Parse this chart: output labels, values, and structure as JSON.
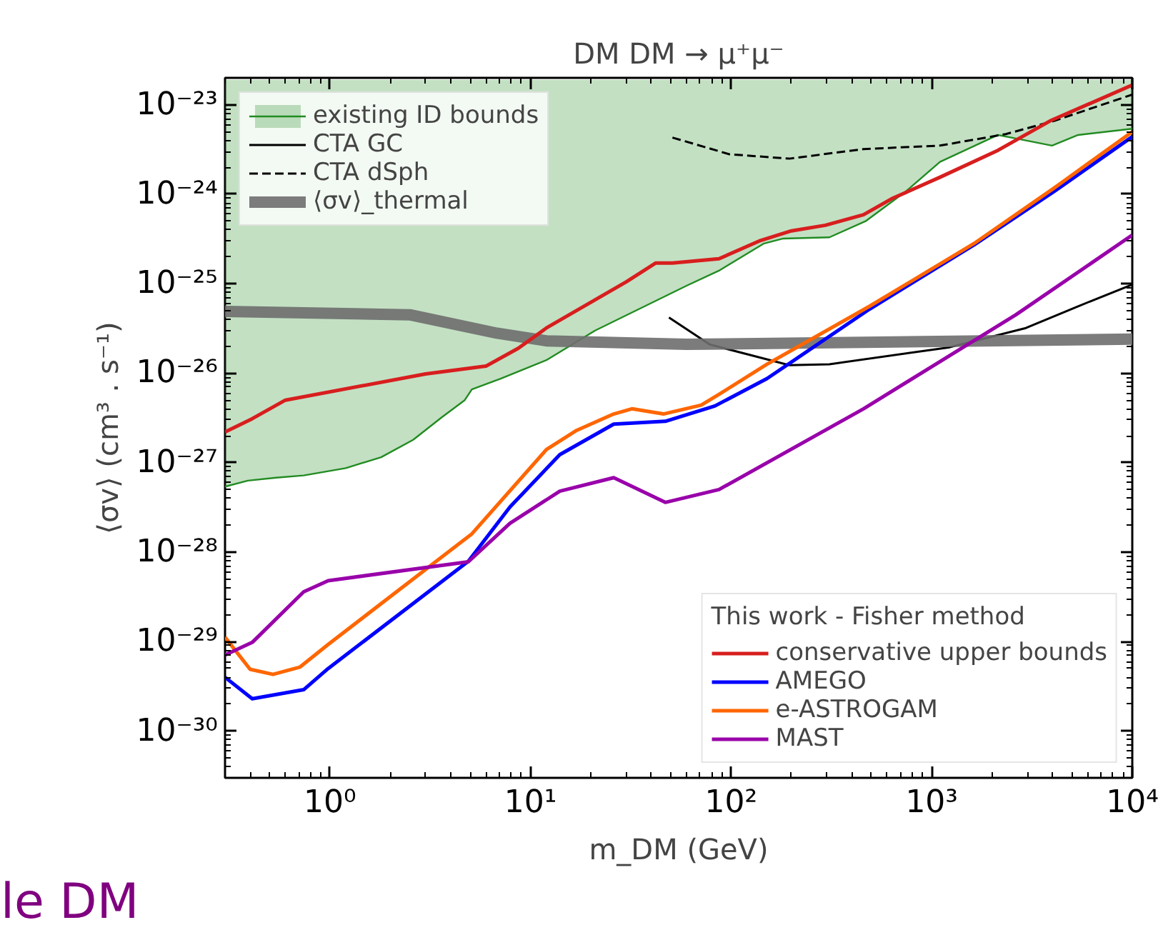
{
  "chart_data": {
    "type": "line",
    "title": "DM DM → μ⁺μ⁻",
    "xlabel": "m_DM (GeV)",
    "ylabel": "⟨σv⟩ (cm³ . s⁻¹)",
    "log": "xy",
    "xlim": [
      0.3,
      10000
    ],
    "ylim": [
      3e-31,
      2e-23
    ],
    "xticks": [
      {
        "value": 1,
        "label": "10⁰"
      },
      {
        "value": 10,
        "label": "10¹"
      },
      {
        "value": 100,
        "label": "10²"
      },
      {
        "value": 1000,
        "label": "10³"
      },
      {
        "value": 10000,
        "label": "10⁴"
      }
    ],
    "yticks": [
      {
        "value": 1e-30,
        "label": "10⁻³⁰"
      },
      {
        "value": 1e-29,
        "label": "10⁻²⁹"
      },
      {
        "value": 1e-28,
        "label": "10⁻²⁸"
      },
      {
        "value": 1e-27,
        "label": "10⁻²⁷"
      },
      {
        "value": 1e-26,
        "label": "10⁻²⁶"
      },
      {
        "value": 1e-25,
        "label": "10⁻²⁵"
      },
      {
        "value": 1e-24,
        "label": "10⁻²⁴"
      },
      {
        "value": 1e-23,
        "label": "10⁻²³"
      }
    ],
    "grid": false,
    "legend": "top left",
    "legend_title": "This work - Fisher method",
    "annotations": [
      "le DM"
    ],
    "series": [
      {
        "name": "existing ID bounds",
        "color": "#228b22",
        "x": [
          0.3,
          0.39,
          0.54,
          0.74,
          1.2,
          1.8,
          2.6,
          3.6,
          4.7,
          5.1,
          7.1,
          12,
          21,
          60,
          87,
          145,
          182,
          309,
          468,
          741,
          1100,
          2140,
          2630,
          3980,
          5370,
          10000
        ],
        "values": [
          5.4e-28,
          6.3e-28,
          6.8e-28,
          7.2e-28,
          8.7e-28,
          1.15e-27,
          1.8e-27,
          3.2e-27,
          5e-27,
          6.6e-27,
          8.7e-27,
          1.4e-26,
          3e-26,
          9.5e-26,
          1.4e-25,
          2.8e-25,
          3.2e-25,
          3.3e-25,
          5e-25,
          1.07e-24,
          2.3e-24,
          4.6e-24,
          4.2e-24,
          3.5e-24,
          4.6e-24,
          5.4e-24
        ],
        "lower": [
          5.4e-28,
          6.3e-28,
          6.8e-28,
          7.2e-28,
          8.7e-28,
          1.15e-27,
          1.8e-27,
          3.2e-27,
          5e-27,
          6.6e-27,
          8.7e-27,
          1.4e-26,
          3e-26,
          9.5e-26,
          1.4e-25,
          2.8e-25,
          3.2e-25,
          3.3e-25,
          5e-25,
          1.07e-24,
          2.3e-24,
          4.6e-24,
          4.2e-24,
          3.5e-24,
          4.6e-24,
          5.4e-24
        ],
        "upper": [
          1.9e-23,
          1.9e-23,
          1.9e-23,
          1.9e-23,
          1.9e-23,
          1.9e-23,
          1.9e-23,
          1.9e-23,
          1.9e-23,
          1.9e-23,
          1.9e-23,
          1.9e-23,
          1.9e-23,
          1.9e-23,
          1.9e-23,
          1.9e-23,
          1.9e-23,
          1.9e-23,
          1.9e-23,
          1.9e-23,
          1.9e-23,
          1.9e-23,
          1.9e-23,
          1.9e-23,
          1.9e-23,
          1.9e-23
        ]
      },
      {
        "name": "CTA GC",
        "color": "#000000",
        "x": [
          49,
          78,
          195,
          309,
          1230,
          2950,
          5370,
          10000
        ],
        "values": [
          4.2e-26,
          2.1e-26,
          1.23e-26,
          1.26e-26,
          1.95e-26,
          3.2e-26,
          5.6e-26,
          9.8e-26
        ]
      },
      {
        "name": "CTA dSph",
        "color": "#000000",
        "line_style": "dashed",
        "x": [
          51,
          98,
          195,
          457,
          1100,
          2340,
          4070,
          10000
        ],
        "values": [
          4.3e-24,
          2.8e-24,
          2.5e-24,
          3.2e-24,
          3.5e-24,
          4.7e-24,
          6.6e-24,
          1.3e-23
        ]
      },
      {
        "name": "⟨σv⟩_thermal",
        "color": "#6e6e6e",
        "x": [
          0.3,
          2.5,
          6.8,
          12,
          60,
          10000
        ],
        "values": [
          4.9e-26,
          4.5e-26,
          2.8e-26,
          2.3e-26,
          2.1e-26,
          2.4e-26
        ]
      },
      {
        "name": "conservative upper bounds",
        "color": "#d81e1e",
        "x": [
          0.3,
          0.41,
          0.6,
          3.0,
          6.0,
          8.7,
          12,
          30,
          42,
          51,
          87,
          138,
          200,
          295,
          457,
          631,
          1100,
          2140,
          3890,
          10000
        ],
        "values": [
          2.2e-27,
          3.1e-27,
          5e-27,
          9.8e-27,
          1.2e-26,
          1.9e-26,
          3.2e-26,
          1.05e-25,
          1.7e-25,
          1.7e-25,
          1.9e-25,
          3e-25,
          3.9e-25,
          4.5e-25,
          5.9e-25,
          8.9e-25,
          1.55e-24,
          3.1e-24,
          6.6e-24,
          1.66e-23
        ]
      },
      {
        "name": "AMEGO",
        "color": "#0000ff",
        "x": [
          0.3,
          0.41,
          0.74,
          0.98,
          4.9,
          7.9,
          14,
          26,
          47,
          83,
          151,
          490,
          1620,
          4070,
          10000
        ],
        "values": [
          4e-30,
          2.3e-30,
          2.9e-30,
          5e-30,
          7.9e-29,
          3.2e-28,
          1.23e-27,
          2.7e-27,
          2.9e-27,
          4.3e-27,
          8.7e-27,
          5.2e-26,
          2.7e-25,
          1.07e-24,
          4.4e-24
        ]
      },
      {
        "name": "e-ASTROGAM",
        "color": "#ff6600",
        "x": [
          0.3,
          0.4,
          0.52,
          0.71,
          0.98,
          5.1,
          12,
          17,
          26,
          32,
          46,
          71,
          87,
          151,
          490,
          1620,
          4070,
          10000
        ],
        "values": [
          1.12e-29,
          4.9e-30,
          4.3e-30,
          5.2e-30,
          9.3e-30,
          1.6e-28,
          1.4e-27,
          2.3e-27,
          3.5e-27,
          4e-27,
          3.5e-27,
          4.4e-27,
          5.8e-27,
          1.26e-26,
          5.6e-26,
          2.8e-25,
          1.17e-24,
          5e-24
        ]
      },
      {
        "name": "MAST",
        "color": "#9900aa",
        "x": [
          0.3,
          0.41,
          0.74,
          0.98,
          4.9,
          7.9,
          14,
          26,
          47,
          87,
          457,
          2630,
          10000
        ],
        "values": [
          7.1e-30,
          9.8e-30,
          3.6e-29,
          4.8e-29,
          7.8e-29,
          2.1e-28,
          4.8e-28,
          6.8e-28,
          3.6e-28,
          5e-28,
          4e-27,
          4.5e-26,
          3.5e-25
        ]
      }
    ]
  }
}
